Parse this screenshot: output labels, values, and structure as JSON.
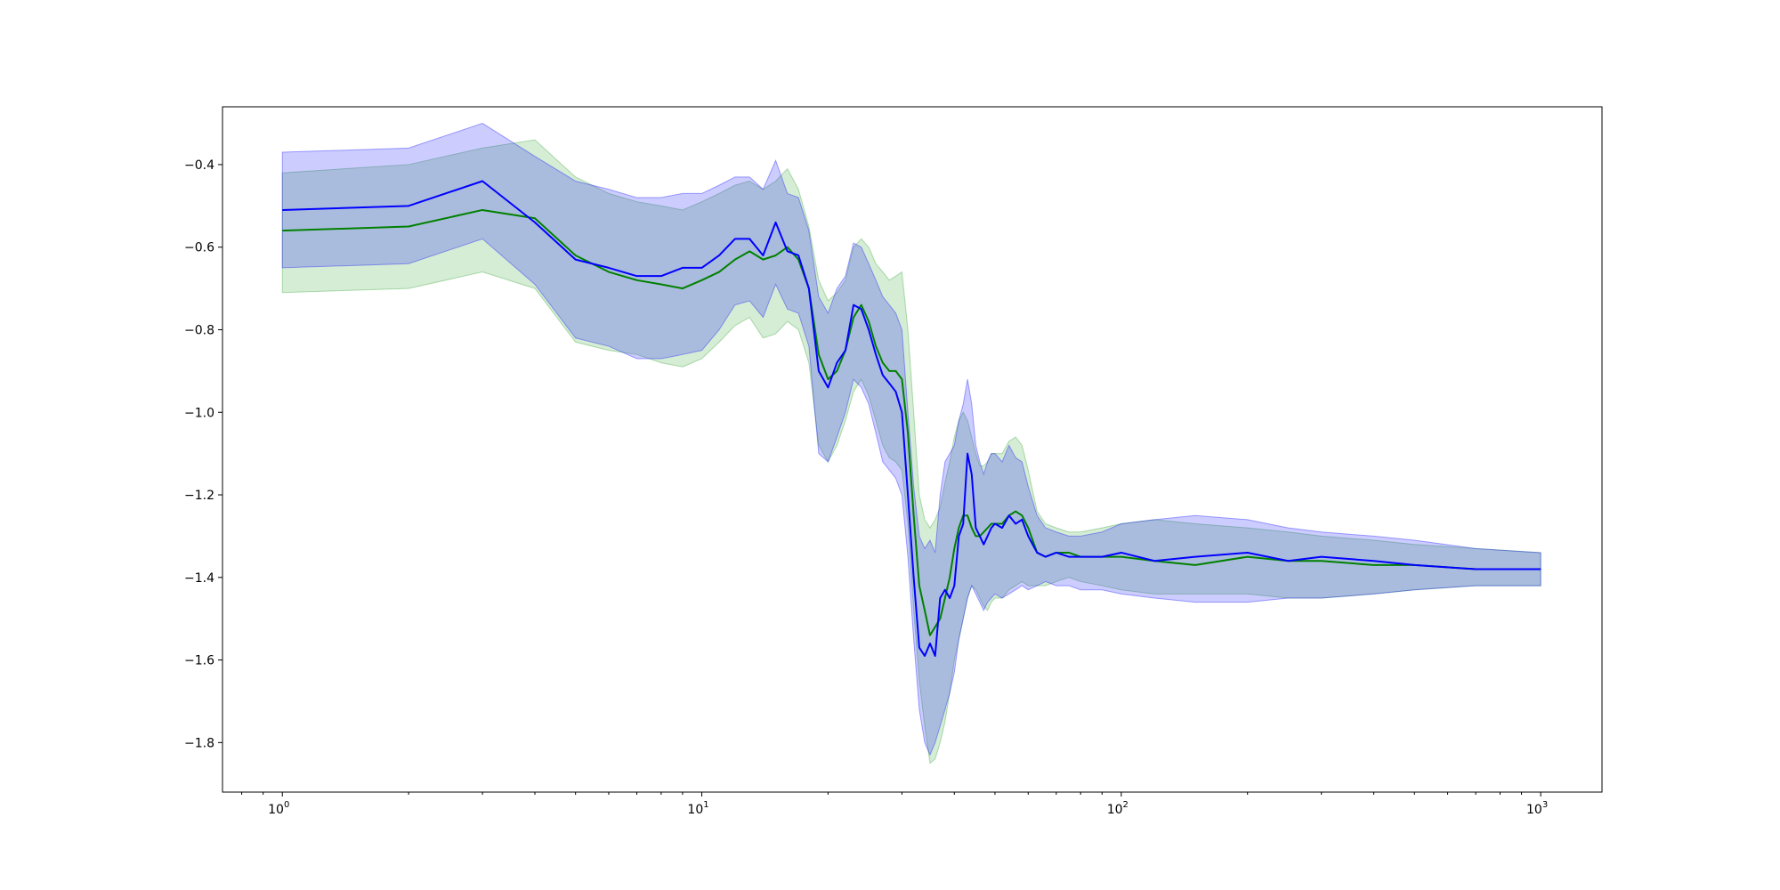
{
  "chart_data": {
    "type": "line",
    "title": "",
    "xlabel": "",
    "ylabel": "",
    "xscale": "log",
    "xlim": [
      0.72,
      1400
    ],
    "ylim": [
      -1.92,
      -0.26
    ],
    "grid": false,
    "legend": "none",
    "x_ticks": [
      {
        "value": 1,
        "base": "10",
        "exp": "0"
      },
      {
        "value": 10,
        "base": "10",
        "exp": "1"
      },
      {
        "value": 100,
        "base": "10",
        "exp": "2"
      },
      {
        "value": 1000,
        "base": "10",
        "exp": "3"
      }
    ],
    "y_ticks": [
      {
        "value": -0.4,
        "label": "−0.4"
      },
      {
        "value": -0.6,
        "label": "−0.6"
      },
      {
        "value": -0.8,
        "label": "−0.8"
      },
      {
        "value": -1.0,
        "label": "−1.0"
      },
      {
        "value": -1.2,
        "label": "−1.2"
      },
      {
        "value": -1.4,
        "label": "−1.4"
      },
      {
        "value": -1.6,
        "label": "−1.6"
      },
      {
        "value": -1.8,
        "label": "−1.8"
      }
    ],
    "x": [
      1,
      2,
      3,
      4,
      5,
      6,
      7,
      8,
      9,
      10,
      11,
      12,
      13,
      14,
      15,
      16,
      17,
      18,
      19,
      20,
      21,
      22,
      23,
      24,
      25,
      26,
      27,
      28,
      29,
      30,
      31,
      32,
      33,
      34,
      35,
      36,
      37,
      38,
      39,
      40,
      41,
      42,
      43,
      44,
      45,
      46,
      47,
      48,
      49,
      50,
      52,
      54,
      56,
      58,
      60,
      63,
      66,
      70,
      75,
      80,
      90,
      100,
      120,
      150,
      200,
      250,
      300,
      400,
      500,
      700,
      1000
    ],
    "series": [
      {
        "color": "#008000",
        "band_color": "#2ca02c",
        "mean": [
          -0.56,
          -0.55,
          -0.51,
          -0.53,
          -0.62,
          -0.66,
          -0.68,
          -0.69,
          -0.7,
          -0.68,
          -0.66,
          -0.63,
          -0.61,
          -0.63,
          -0.62,
          -0.6,
          -0.63,
          -0.7,
          -0.86,
          -0.92,
          -0.9,
          -0.85,
          -0.77,
          -0.74,
          -0.78,
          -0.84,
          -0.88,
          -0.9,
          -0.9,
          -0.92,
          -1.05,
          -1.25,
          -1.42,
          -1.48,
          -1.54,
          -1.52,
          -1.5,
          -1.45,
          -1.4,
          -1.33,
          -1.28,
          -1.25,
          -1.25,
          -1.28,
          -1.3,
          -1.3,
          -1.29,
          -1.28,
          -1.27,
          -1.27,
          -1.27,
          -1.25,
          -1.24,
          -1.25,
          -1.28,
          -1.34,
          -1.35,
          -1.34,
          -1.34,
          -1.35,
          -1.35,
          -1.35,
          -1.36,
          -1.37,
          -1.35,
          -1.36,
          -1.36,
          -1.37,
          -1.37,
          -1.38,
          -1.38
        ],
        "lower": [
          -0.71,
          -0.7,
          -0.66,
          -0.7,
          -0.83,
          -0.85,
          -0.86,
          -0.88,
          -0.89,
          -0.87,
          -0.83,
          -0.79,
          -0.77,
          -0.82,
          -0.81,
          -0.78,
          -0.8,
          -0.88,
          -1.08,
          -1.12,
          -1.08,
          -1.02,
          -0.95,
          -0.92,
          -0.96,
          -1.02,
          -1.08,
          -1.11,
          -1.12,
          -1.14,
          -1.27,
          -1.48,
          -1.65,
          -1.76,
          -1.85,
          -1.84,
          -1.8,
          -1.75,
          -1.68,
          -1.6,
          -1.55,
          -1.5,
          -1.45,
          -1.42,
          -1.43,
          -1.45,
          -1.47,
          -1.48,
          -1.46,
          -1.45,
          -1.45,
          -1.43,
          -1.42,
          -1.41,
          -1.42,
          -1.42,
          -1.42,
          -1.41,
          -1.4,
          -1.41,
          -1.42,
          -1.43,
          -1.44,
          -1.44,
          -1.44,
          -1.45,
          -1.45,
          -1.44,
          -1.43,
          -1.42,
          -1.42
        ],
        "upper": [
          -0.42,
          -0.4,
          -0.36,
          -0.34,
          -0.43,
          -0.47,
          -0.49,
          -0.5,
          -0.51,
          -0.49,
          -0.47,
          -0.45,
          -0.44,
          -0.46,
          -0.44,
          -0.41,
          -0.46,
          -0.55,
          -0.68,
          -0.73,
          -0.71,
          -0.68,
          -0.6,
          -0.58,
          -0.6,
          -0.64,
          -0.66,
          -0.68,
          -0.67,
          -0.66,
          -0.8,
          -1.0,
          -1.2,
          -1.26,
          -1.28,
          -1.26,
          -1.23,
          -1.17,
          -1.12,
          -1.06,
          -1.02,
          -1.0,
          -1.02,
          -1.06,
          -1.1,
          -1.13,
          -1.13,
          -1.12,
          -1.1,
          -1.1,
          -1.1,
          -1.07,
          -1.06,
          -1.08,
          -1.14,
          -1.24,
          -1.27,
          -1.28,
          -1.29,
          -1.29,
          -1.28,
          -1.27,
          -1.26,
          -1.27,
          -1.28,
          -1.29,
          -1.3,
          -1.31,
          -1.32,
          -1.33,
          -1.34
        ]
      },
      {
        "color": "#0000ff",
        "band_color": "#0000ff",
        "mean": [
          -0.51,
          -0.5,
          -0.44,
          -0.54,
          -0.63,
          -0.65,
          -0.67,
          -0.67,
          -0.65,
          -0.65,
          -0.62,
          -0.58,
          -0.58,
          -0.62,
          -0.54,
          -0.61,
          -0.62,
          -0.7,
          -0.9,
          -0.94,
          -0.88,
          -0.85,
          -0.74,
          -0.75,
          -0.8,
          -0.86,
          -0.91,
          -0.93,
          -0.95,
          -1.0,
          -1.2,
          -1.4,
          -1.57,
          -1.59,
          -1.56,
          -1.59,
          -1.45,
          -1.43,
          -1.45,
          -1.42,
          -1.3,
          -1.27,
          -1.1,
          -1.15,
          -1.28,
          -1.3,
          -1.32,
          -1.3,
          -1.28,
          -1.27,
          -1.28,
          -1.25,
          -1.27,
          -1.26,
          -1.3,
          -1.34,
          -1.35,
          -1.34,
          -1.35,
          -1.35,
          -1.35,
          -1.34,
          -1.36,
          -1.35,
          -1.34,
          -1.36,
          -1.35,
          -1.36,
          -1.37,
          -1.38,
          -1.38
        ],
        "lower": [
          -0.65,
          -0.64,
          -0.58,
          -0.69,
          -0.82,
          -0.84,
          -0.87,
          -0.87,
          -0.86,
          -0.85,
          -0.8,
          -0.74,
          -0.73,
          -0.77,
          -0.69,
          -0.75,
          -0.76,
          -0.84,
          -1.1,
          -1.12,
          -1.06,
          -1.0,
          -0.92,
          -0.94,
          -0.98,
          -1.05,
          -1.12,
          -1.14,
          -1.16,
          -1.2,
          -1.35,
          -1.55,
          -1.72,
          -1.8,
          -1.83,
          -1.8,
          -1.76,
          -1.72,
          -1.68,
          -1.63,
          -1.55,
          -1.5,
          -1.45,
          -1.42,
          -1.44,
          -1.46,
          -1.48,
          -1.46,
          -1.45,
          -1.44,
          -1.45,
          -1.44,
          -1.43,
          -1.42,
          -1.43,
          -1.42,
          -1.41,
          -1.42,
          -1.42,
          -1.43,
          -1.43,
          -1.44,
          -1.45,
          -1.46,
          -1.46,
          -1.45,
          -1.45,
          -1.44,
          -1.43,
          -1.42,
          -1.42
        ],
        "upper": [
          -0.37,
          -0.36,
          -0.3,
          -0.38,
          -0.44,
          -0.46,
          -0.48,
          -0.48,
          -0.47,
          -0.47,
          -0.45,
          -0.43,
          -0.43,
          -0.46,
          -0.39,
          -0.47,
          -0.48,
          -0.56,
          -0.72,
          -0.76,
          -0.7,
          -0.67,
          -0.59,
          -0.6,
          -0.64,
          -0.68,
          -0.72,
          -0.74,
          -0.76,
          -0.8,
          -1.0,
          -1.18,
          -1.3,
          -1.33,
          -1.31,
          -1.34,
          -1.2,
          -1.12,
          -1.1,
          -1.08,
          -1.02,
          -0.98,
          -0.92,
          -0.98,
          -1.08,
          -1.12,
          -1.15,
          -1.12,
          -1.1,
          -1.1,
          -1.12,
          -1.08,
          -1.11,
          -1.12,
          -1.18,
          -1.25,
          -1.28,
          -1.29,
          -1.3,
          -1.3,
          -1.29,
          -1.27,
          -1.26,
          -1.25,
          -1.26,
          -1.28,
          -1.29,
          -1.3,
          -1.31,
          -1.33,
          -1.34
        ]
      }
    ]
  }
}
